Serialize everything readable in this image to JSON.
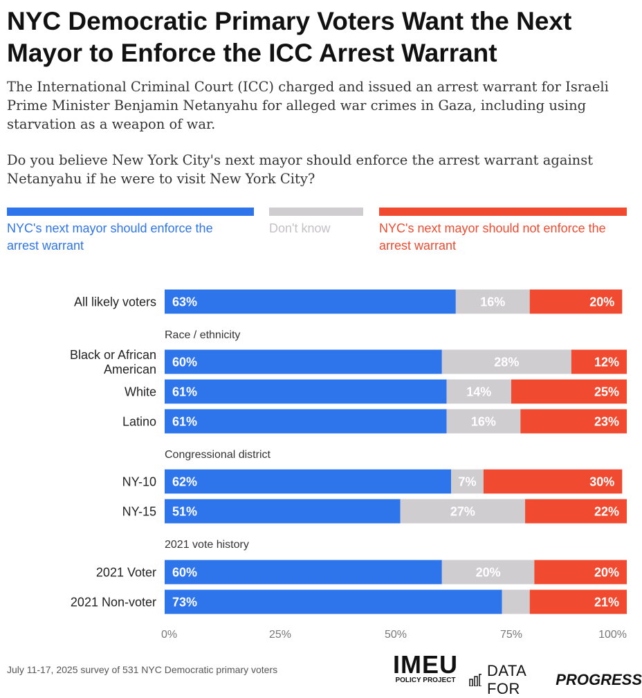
{
  "title": "NYC Democratic Primary Voters Want the Next Mayor to Enforce the ICC Arrest Warrant",
  "subtitle": "The International Criminal Court (ICC) charged and issued an arrest warrant for Israeli Prime Minister Benjamin Netanyahu for alleged war crimes in Gaza, including using starvation as a weapon of war.",
  "question": "Do you believe New York City's next mayor should enforce the arrest warrant against Netanyahu if he were to visit New York City?",
  "legend": [
    {
      "label": "NYC's next mayor should enforce the arrest warrant",
      "color": "#2e74eb"
    },
    {
      "label": "Don't know",
      "color": "#d0cdd0"
    },
    {
      "label": "NYC's next mayor should not enforce the arrest warrant",
      "color": "#f04b30"
    }
  ],
  "footer": {
    "note": "July 11-17, 2025 survey of 531 NYC Democratic primary voters",
    "logo_main": "IMEU",
    "logo_sub": "POLICY PROJECT",
    "dfp_prefix": "DATA FOR ",
    "dfp_strong": "PROGRESS"
  },
  "chart_data": {
    "type": "bar",
    "orientation": "horizontal",
    "stacked": true,
    "xlim": [
      0,
      100
    ],
    "x_ticks": [
      "0%",
      "25%",
      "50%",
      "75%",
      "100%"
    ],
    "series_names": [
      "NYC's next mayor should enforce the arrest warrant",
      "Don't know",
      "NYC's next mayor should not enforce the arrest warrant"
    ],
    "colors": [
      "#2e74eb",
      "#d0cdd0",
      "#f04b30"
    ],
    "label_colors": [
      "#ffffff",
      "#ffffff",
      "#ffffff"
    ],
    "groups": [
      {
        "heading": "",
        "rows": [
          {
            "label": "All likely voters",
            "values": [
              63,
              16,
              20
            ]
          }
        ]
      },
      {
        "heading": "Race / ethnicity",
        "rows": [
          {
            "label": "Black or African American",
            "values": [
              60,
              28,
              12
            ]
          },
          {
            "label": "White",
            "values": [
              61,
              14,
              25
            ]
          },
          {
            "label": "Latino",
            "values": [
              61,
              16,
              23
            ]
          }
        ]
      },
      {
        "heading": "Congressional district",
        "rows": [
          {
            "label": "NY-10",
            "values": [
              62,
              7,
              30
            ]
          },
          {
            "label": "NY-15",
            "values": [
              51,
              27,
              22
            ]
          }
        ]
      },
      {
        "heading": "2021 vote history",
        "rows": [
          {
            "label": "2021 Voter",
            "values": [
              60,
              20,
              20
            ]
          },
          {
            "label": "2021 Non-voter",
            "values": [
              73,
              6,
              21
            ]
          }
        ]
      }
    ],
    "value_labels": [
      [
        "63%",
        "16%",
        "20%"
      ],
      [
        "60%",
        "28%",
        "12%"
      ],
      [
        "61%",
        "14%",
        "25%"
      ],
      [
        "61%",
        "16%",
        "23%"
      ],
      [
        "62%",
        "7%",
        "30%"
      ],
      [
        "51%",
        "27%",
        "22%"
      ],
      [
        "60%",
        "20%",
        "20%"
      ],
      [
        "73%",
        "",
        "21%"
      ]
    ]
  }
}
